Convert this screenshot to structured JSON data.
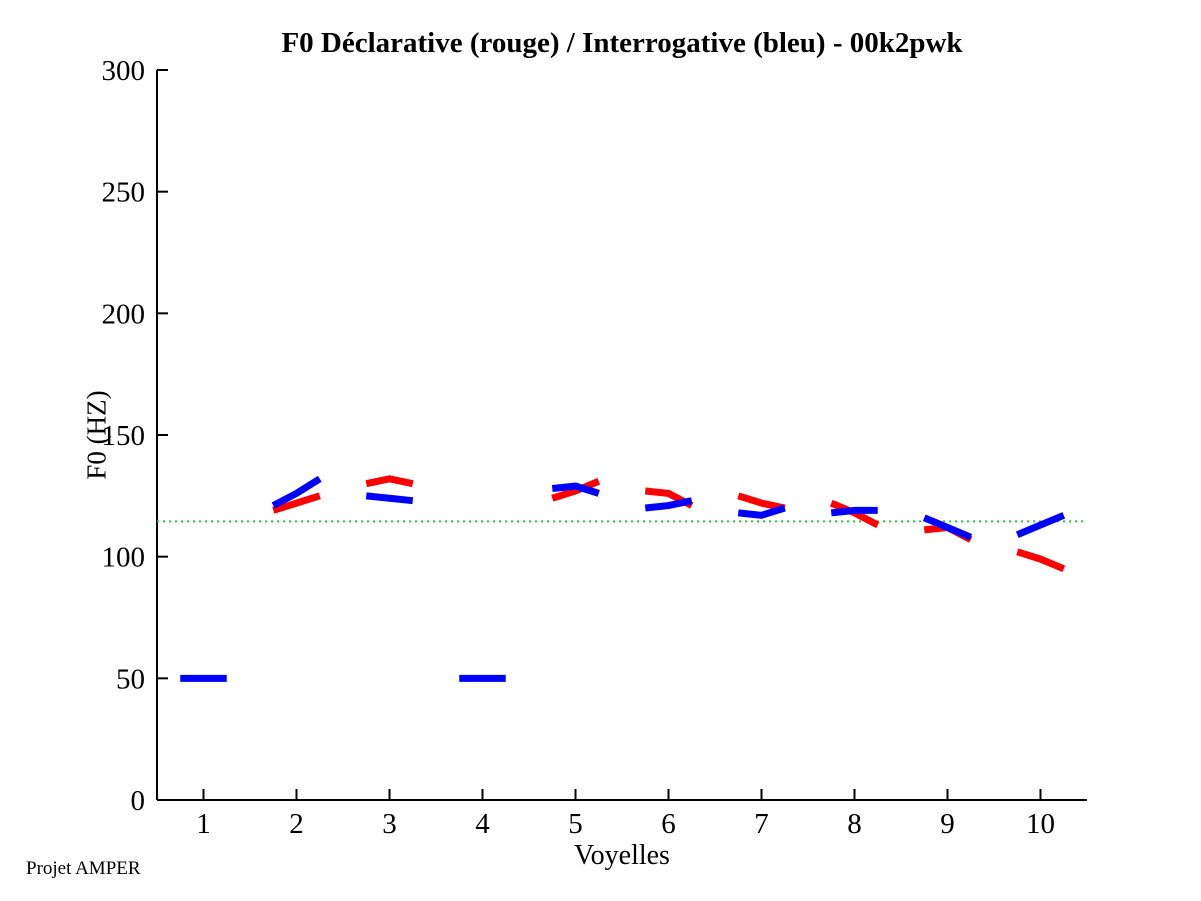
{
  "figure": {
    "footer": "Projet AMPER",
    "background": "#ffffff"
  },
  "chart_data": {
    "type": "line",
    "title": "F0 Déclarative (rouge) / Interrogative (bleu) - 00k2pwk",
    "xlabel": "Voyelles",
    "ylabel": "F0 (HZ)",
    "xlim": [
      0.5,
      10.5
    ],
    "ylim": [
      0,
      300
    ],
    "x_ticks": [
      1,
      2,
      3,
      4,
      5,
      6,
      7,
      8,
      9,
      10
    ],
    "y_ticks": [
      0,
      50,
      100,
      150,
      200,
      250,
      300
    ],
    "grid": false,
    "legend_position": "none",
    "axis_color": "#000000",
    "reference_line": {
      "y": 114.5,
      "color": "#22cc44",
      "style": "dotted"
    },
    "segment_half_width": 0.25,
    "line_width": 7,
    "series": [
      {
        "name": "Déclarative",
        "color_label": "rouge",
        "color": "#ff0000",
        "segments": [
          {
            "vowel": 2,
            "values": [
              119,
              122,
              125
            ]
          },
          {
            "vowel": 3,
            "values": [
              130,
              132,
              130
            ]
          },
          {
            "vowel": 5,
            "values": [
              124,
              127,
              131
            ]
          },
          {
            "vowel": 6,
            "values": [
              127,
              126,
              121
            ]
          },
          {
            "vowel": 7,
            "values": [
              125,
              122,
              120
            ]
          },
          {
            "vowel": 8,
            "values": [
              122,
              118,
              113
            ]
          },
          {
            "vowel": 9,
            "values": [
              111,
              112,
              107
            ]
          },
          {
            "vowel": 10,
            "values": [
              102,
              99,
              95
            ]
          }
        ]
      },
      {
        "name": "Interrogative",
        "color_label": "bleu",
        "color": "#0000ff",
        "segments": [
          {
            "vowel": 1,
            "values": [
              50,
              50,
              50
            ]
          },
          {
            "vowel": 2,
            "values": [
              121,
              126,
              132
            ]
          },
          {
            "vowel": 3,
            "values": [
              125,
              124,
              123
            ]
          },
          {
            "vowel": 4,
            "values": [
              50,
              50,
              50
            ]
          },
          {
            "vowel": 5,
            "values": [
              128,
              129,
              126
            ]
          },
          {
            "vowel": 6,
            "values": [
              120,
              121,
              123
            ]
          },
          {
            "vowel": 7,
            "values": [
              118,
              117,
              120
            ]
          },
          {
            "vowel": 8,
            "values": [
              118,
              119,
              119
            ]
          },
          {
            "vowel": 9,
            "values": [
              116,
              112,
              108
            ]
          },
          {
            "vowel": 10,
            "values": [
              109,
              113,
              117
            ]
          }
        ]
      }
    ]
  }
}
